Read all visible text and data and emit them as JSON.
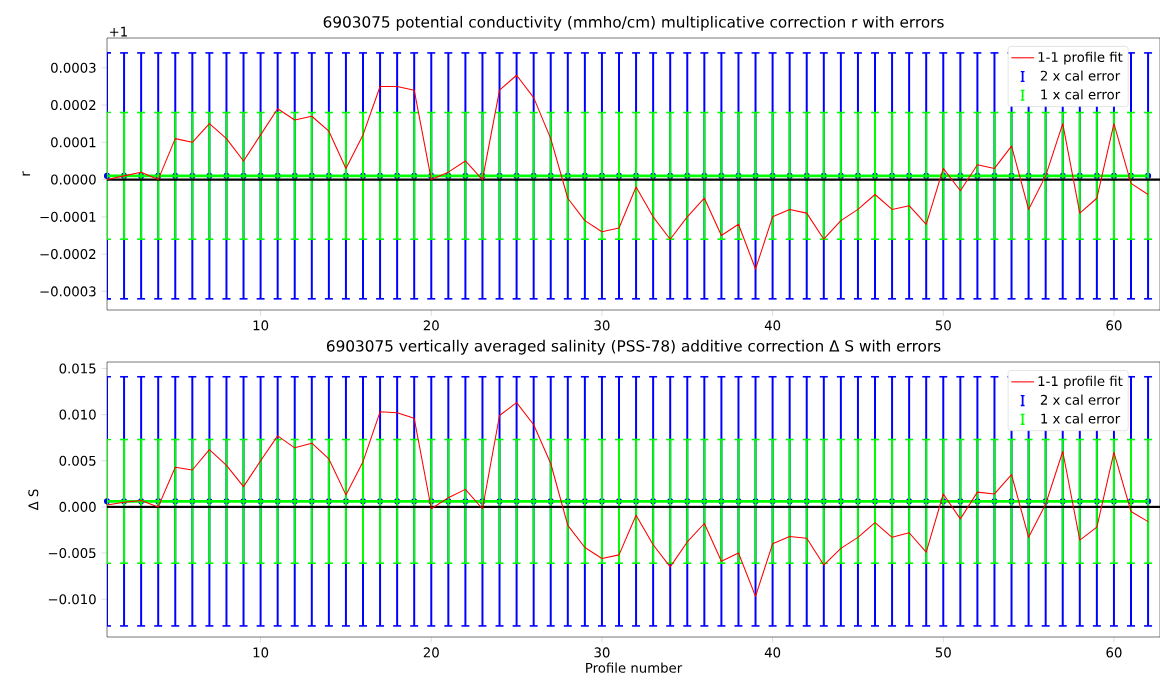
{
  "chart_data": [
    {
      "type": "line",
      "title": "6903075 potential conductivity (mmho/cm) multiplicative correction r with errors",
      "ylabel": "r",
      "annotations": [
        "+1"
      ],
      "x": [
        1,
        2,
        3,
        4,
        5,
        6,
        7,
        8,
        9,
        10,
        11,
        12,
        13,
        14,
        15,
        16,
        17,
        18,
        19,
        20,
        21,
        22,
        23,
        24,
        25,
        26,
        27,
        28,
        29,
        30,
        31,
        32,
        33,
        34,
        35,
        36,
        37,
        38,
        39,
        40,
        41,
        42,
        43,
        44,
        45,
        46,
        47,
        48,
        49,
        50,
        51,
        52,
        53,
        54,
        55,
        56,
        57,
        58,
        59,
        60,
        61,
        62
      ],
      "series": [
        {
          "name": "1-1 profile fit",
          "color": "#ff0000",
          "values": [
            0.0,
            1e-05,
            2e-05,
            0.0,
            0.00011,
            0.0001,
            0.00015,
            0.00011,
            5e-05,
            0.00012,
            0.00019,
            0.00016,
            0.00017,
            0.00013,
            3e-05,
            0.00012,
            0.00025,
            0.00025,
            0.00024,
            0.0,
            2e-05,
            5e-05,
            0.0,
            0.00024,
            0.00028,
            0.00022,
            0.00011,
            -5e-05,
            -0.00011,
            -0.00014,
            -0.00013,
            -2e-05,
            -0.0001,
            -0.00016,
            -0.0001,
            -5e-05,
            -0.00015,
            -0.00012,
            -0.00024,
            -0.0001,
            -8e-05,
            -9e-05,
            -0.00016,
            -0.00011,
            -8e-05,
            -4e-05,
            -8e-05,
            -7e-05,
            -0.00012,
            3e-05,
            -3e-05,
            4e-05,
            3e-05,
            9e-05,
            -8e-05,
            1e-05,
            0.00015,
            -9e-05,
            -5e-05,
            0.00015,
            -1e-05,
            -4e-05
          ]
        },
        {
          "name": "2 x cal error",
          "type": "scatter",
          "color": "#0000ff",
          "values": [
            1e-05,
            1e-05,
            1e-05,
            1e-05,
            1e-05,
            1e-05,
            1e-05,
            1e-05,
            1e-05,
            1e-05,
            1e-05,
            1e-05,
            1e-05,
            1e-05,
            1e-05,
            1e-05,
            1e-05,
            1e-05,
            1e-05,
            1e-05,
            1e-05,
            1e-05,
            1e-05,
            1e-05,
            1e-05,
            1e-05,
            1e-05,
            1e-05,
            1e-05,
            1e-05,
            1e-05,
            1e-05,
            1e-05,
            1e-05,
            1e-05,
            1e-05,
            1e-05,
            1e-05,
            1e-05,
            1e-05,
            1e-05,
            1e-05,
            1e-05,
            1e-05,
            1e-05,
            1e-05,
            1e-05,
            1e-05,
            1e-05,
            1e-05,
            1e-05,
            1e-05,
            1e-05,
            1e-05,
            1e-05,
            1e-05,
            1e-05,
            1e-05,
            1e-05,
            1e-05,
            1e-05,
            1e-05
          ],
          "errors": [
            0.00033,
            0.00033,
            0.00033,
            0.00033,
            0.00033,
            0.00033,
            0.00033,
            0.00033,
            0.00033,
            0.00033,
            0.00033,
            0.00033,
            0.00033,
            0.00033,
            0.00033,
            0.00033,
            0.00033,
            0.00033,
            0.00033,
            0.00033,
            0.00033,
            0.00033,
            0.00033,
            0.00033,
            0.00033,
            0.00033,
            0.00033,
            0.00033,
            0.00033,
            0.00033,
            0.00033,
            0.00033,
            0.00033,
            0.00033,
            0.00033,
            0.00033,
            0.00033,
            0.00033,
            0.00033,
            0.00033,
            0.00033,
            0.00033,
            0.00033,
            0.00033,
            0.00033,
            0.00033,
            0.00033,
            0.00033,
            0.00033,
            0.00033,
            0.00033,
            0.00033,
            0.00033,
            0.00033,
            0.00033,
            0.00033,
            0.00033,
            0.00033,
            0.00033,
            0.00033,
            0.00033,
            0.00033
          ]
        },
        {
          "name": "1 x cal error",
          "color": "#00ff00",
          "values": [
            1e-05,
            1e-05,
            1e-05,
            1e-05,
            1e-05,
            1e-05,
            1e-05,
            1e-05,
            1e-05,
            1e-05,
            1e-05,
            1e-05,
            1e-05,
            1e-05,
            1e-05,
            1e-05,
            1e-05,
            1e-05,
            1e-05,
            1e-05,
            1e-05,
            1e-05,
            1e-05,
            1e-05,
            1e-05,
            1e-05,
            1e-05,
            1e-05,
            1e-05,
            1e-05,
            1e-05,
            1e-05,
            1e-05,
            1e-05,
            1e-05,
            1e-05,
            1e-05,
            1e-05,
            1e-05,
            1e-05,
            1e-05,
            1e-05,
            1e-05,
            1e-05,
            1e-05,
            1e-05,
            1e-05,
            1e-05,
            1e-05,
            1e-05,
            1e-05,
            1e-05,
            1e-05,
            1e-05,
            1e-05,
            1e-05,
            1e-05,
            1e-05,
            1e-05,
            1e-05,
            1e-05,
            1e-05
          ],
          "errors": [
            0.00017,
            0.00017,
            0.00017,
            0.00017,
            0.00017,
            0.00017,
            0.00017,
            0.00017,
            0.00017,
            0.00017,
            0.00017,
            0.00017,
            0.00017,
            0.00017,
            0.00017,
            0.00017,
            0.00017,
            0.00017,
            0.00017,
            0.00017,
            0.00017,
            0.00017,
            0.00017,
            0.00017,
            0.00017,
            0.00017,
            0.00017,
            0.00017,
            0.00017,
            0.00017,
            0.00017,
            0.00017,
            0.00017,
            0.00017,
            0.00017,
            0.00017,
            0.00017,
            0.00017,
            0.00017,
            0.00017,
            0.00017,
            0.00017,
            0.00017,
            0.00017,
            0.00017,
            0.00017,
            0.00017,
            0.00017,
            0.00017,
            0.00017,
            0.00017,
            0.00017,
            0.00017,
            0.00017,
            0.00017,
            0.00017,
            0.00017,
            0.00017,
            0.00017,
            0.00017,
            0.00017,
            0.00017
          ]
        }
      ],
      "ref_lines": [
        {
          "axis": "y",
          "value": 0,
          "color": "#000000"
        }
      ],
      "xlim": [
        1,
        62.7
      ],
      "ylim": [
        -0.00035,
        0.00038
      ],
      "xticks": [
        10,
        20,
        30,
        40,
        50,
        60
      ],
      "yticks": [
        {
          "value": -0.0003,
          "label": "−0.0003"
        },
        {
          "value": -0.0002,
          "label": "−0.0002"
        },
        {
          "value": -0.0001,
          "label": "−0.0001"
        },
        {
          "value": 0,
          "label": "0.0000"
        },
        {
          "value": 0.0001,
          "label": "0.0001"
        },
        {
          "value": 0.0002,
          "label": "0.0002"
        },
        {
          "value": 0.0003,
          "label": "0.0003"
        }
      ],
      "legend": "top right",
      "marker": "none",
      "line_style": "solid"
    },
    {
      "type": "line",
      "title": "6903075 vertically averaged salinity (PSS-78) additive correction Δ S with errors",
      "xlabel": "Profile number",
      "ylabel": "Δ S",
      "x": [
        1,
        2,
        3,
        4,
        5,
        6,
        7,
        8,
        9,
        10,
        11,
        12,
        13,
        14,
        15,
        16,
        17,
        18,
        19,
        20,
        21,
        22,
        23,
        24,
        25,
        26,
        27,
        28,
        29,
        30,
        31,
        32,
        33,
        34,
        35,
        36,
        37,
        38,
        39,
        40,
        41,
        42,
        43,
        44,
        45,
        46,
        47,
        48,
        49,
        50,
        51,
        52,
        53,
        54,
        55,
        56,
        57,
        58,
        59,
        60,
        61,
        62
      ],
      "series": [
        {
          "name": "1-1 profile fit",
          "color": "#ff0000",
          "values": [
            0.0002,
            0.0005,
            0.0007,
            0.0,
            0.0043,
            0.004,
            0.0062,
            0.0045,
            0.0022,
            0.005,
            0.0077,
            0.0064,
            0.0069,
            0.0052,
            0.0013,
            0.0049,
            0.0103,
            0.0102,
            0.0096,
            -0.0002,
            0.001,
            0.0019,
            -0.0002,
            0.0099,
            0.0113,
            0.0089,
            0.0047,
            -0.002,
            -0.0044,
            -0.0056,
            -0.0052,
            -0.0009,
            -0.0041,
            -0.0065,
            -0.0038,
            -0.0018,
            -0.0059,
            -0.005,
            -0.0097,
            -0.004,
            -0.0032,
            -0.0034,
            -0.0063,
            -0.0045,
            -0.0033,
            -0.0017,
            -0.0033,
            -0.0028,
            -0.0049,
            0.0014,
            -0.0013,
            0.0016,
            0.0014,
            0.0035,
            -0.0033,
            0.0003,
            0.006,
            -0.0036,
            -0.0022,
            0.0059,
            -0.0005,
            -0.0016
          ]
        },
        {
          "name": "2 x cal error",
          "type": "scatter",
          "color": "#0000ff",
          "values": [
            0.0006,
            0.0006,
            0.0006,
            0.0006,
            0.0006,
            0.0006,
            0.0006,
            0.0006,
            0.0006,
            0.0006,
            0.0006,
            0.0006,
            0.0006,
            0.0006,
            0.0006,
            0.0006,
            0.0006,
            0.0006,
            0.0006,
            0.0006,
            0.0006,
            0.0006,
            0.0006,
            0.0006,
            0.0006,
            0.0006,
            0.0006,
            0.0006,
            0.0006,
            0.0006,
            0.0006,
            0.0006,
            0.0006,
            0.0006,
            0.0006,
            0.0006,
            0.0006,
            0.0006,
            0.0006,
            0.0006,
            0.0006,
            0.0006,
            0.0006,
            0.0006,
            0.0006,
            0.0006,
            0.0006,
            0.0006,
            0.0006,
            0.0006,
            0.0006,
            0.0006,
            0.0006,
            0.0006,
            0.0006,
            0.0006,
            0.0006,
            0.0006,
            0.0006,
            0.0006,
            0.0006,
            0.0006
          ],
          "errors": [
            0.0135,
            0.0135,
            0.0135,
            0.0135,
            0.0135,
            0.0135,
            0.0135,
            0.0135,
            0.0135,
            0.0135,
            0.0135,
            0.0135,
            0.0135,
            0.0135,
            0.0135,
            0.0135,
            0.0135,
            0.0135,
            0.0135,
            0.0135,
            0.0135,
            0.0135,
            0.0135,
            0.0135,
            0.0135,
            0.0135,
            0.0135,
            0.0135,
            0.0135,
            0.0135,
            0.0135,
            0.0135,
            0.0135,
            0.0135,
            0.0135,
            0.0135,
            0.0135,
            0.0135,
            0.0135,
            0.0135,
            0.0135,
            0.0135,
            0.0135,
            0.0135,
            0.0135,
            0.0135,
            0.0135,
            0.0135,
            0.0135,
            0.0135,
            0.0135,
            0.0135,
            0.0135,
            0.0135,
            0.0135,
            0.0135,
            0.0135,
            0.0135,
            0.0135,
            0.0135,
            0.0135,
            0.0135
          ]
        },
        {
          "name": "1 x cal error",
          "color": "#00ff00",
          "values": [
            0.0006,
            0.0006,
            0.0006,
            0.0006,
            0.0006,
            0.0006,
            0.0006,
            0.0006,
            0.0006,
            0.0006,
            0.0006,
            0.0006,
            0.0006,
            0.0006,
            0.0006,
            0.0006,
            0.0006,
            0.0006,
            0.0006,
            0.0006,
            0.0006,
            0.0006,
            0.0006,
            0.0006,
            0.0006,
            0.0006,
            0.0006,
            0.0006,
            0.0006,
            0.0006,
            0.0006,
            0.0006,
            0.0006,
            0.0006,
            0.0006,
            0.0006,
            0.0006,
            0.0006,
            0.0006,
            0.0006,
            0.0006,
            0.0006,
            0.0006,
            0.0006,
            0.0006,
            0.0006,
            0.0006,
            0.0006,
            0.0006,
            0.0006,
            0.0006,
            0.0006,
            0.0006,
            0.0006,
            0.0006,
            0.0006,
            0.0006,
            0.0006,
            0.0006,
            0.0006,
            0.0006,
            0.0006
          ],
          "errors": [
            0.0067,
            0.0067,
            0.0067,
            0.0067,
            0.0067,
            0.0067,
            0.0067,
            0.0067,
            0.0067,
            0.0067,
            0.0067,
            0.0067,
            0.0067,
            0.0067,
            0.0067,
            0.0067,
            0.0067,
            0.0067,
            0.0067,
            0.0067,
            0.0067,
            0.0067,
            0.0067,
            0.0067,
            0.0067,
            0.0067,
            0.0067,
            0.0067,
            0.0067,
            0.0067,
            0.0067,
            0.0067,
            0.0067,
            0.0067,
            0.0067,
            0.0067,
            0.0067,
            0.0067,
            0.0067,
            0.0067,
            0.0067,
            0.0067,
            0.0067,
            0.0067,
            0.0067,
            0.0067,
            0.0067,
            0.0067,
            0.0067,
            0.0067,
            0.0067,
            0.0067,
            0.0067,
            0.0067,
            0.0067,
            0.0067,
            0.0067,
            0.0067,
            0.0067,
            0.0067,
            0.0067,
            0.0067
          ]
        }
      ],
      "ref_lines": [
        {
          "axis": "y",
          "value": 0,
          "color": "#000000"
        }
      ],
      "xlim": [
        1,
        62.7
      ],
      "ylim": [
        -0.0141,
        0.0157
      ],
      "xticks": [
        10,
        20,
        30,
        40,
        50,
        60
      ],
      "yticks": [
        {
          "value": -0.01,
          "label": "−0.010"
        },
        {
          "value": -0.005,
          "label": "−0.005"
        },
        {
          "value": 0,
          "label": "0.000"
        },
        {
          "value": 0.005,
          "label": "0.005"
        },
        {
          "value": 0.01,
          "label": "0.010"
        },
        {
          "value": 0.015,
          "label": "0.015"
        }
      ],
      "legend": "top right",
      "marker": "none",
      "line_style": "solid"
    }
  ]
}
